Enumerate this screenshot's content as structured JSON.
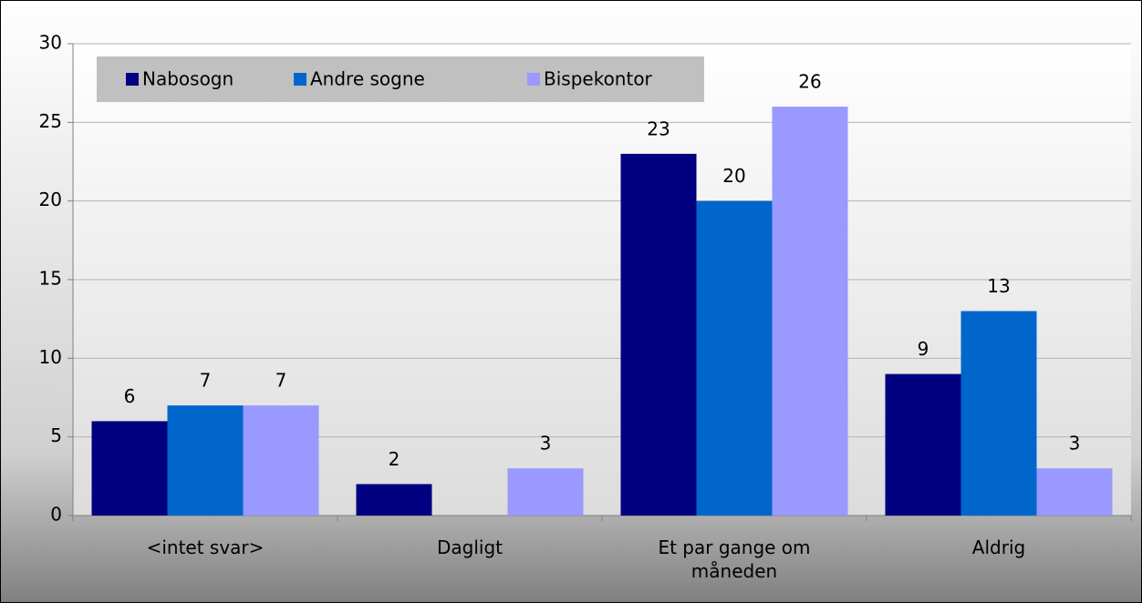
{
  "chart_data": {
    "type": "bar",
    "categories": [
      "<intet svar>",
      "Dagligt",
      "Et par gange om måneden",
      "Aldrig"
    ],
    "series": [
      {
        "name": "Nabosogn",
        "color": "#000080",
        "values": [
          6,
          2,
          23,
          9
        ]
      },
      {
        "name": "Andre sogne",
        "color": "#0066cc",
        "values": [
          7,
          null,
          20,
          13
        ]
      },
      {
        "name": "Bispekontor",
        "color": "#9999ff",
        "values": [
          7,
          3,
          26,
          3
        ]
      }
    ],
    "ylim": [
      0,
      30
    ],
    "yticks": [
      0,
      5,
      10,
      15,
      20,
      25,
      30
    ],
    "grid": true,
    "legend": "top-left"
  }
}
